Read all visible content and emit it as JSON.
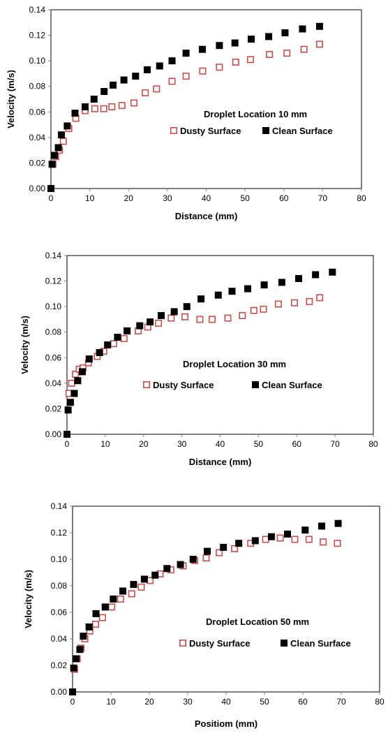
{
  "colors": {
    "dusty": "#c0504d",
    "clean": "#000000",
    "axis": "#808080",
    "frame": "#000000"
  },
  "chart_data": [
    {
      "type": "scatter",
      "xlabel": "Distance (mm)",
      "ylabel": "Velocity (m/s)",
      "annotation": "Droplet Location 10 mm",
      "xlim": [
        0,
        80
      ],
      "ylim": [
        0,
        0.14
      ],
      "xticks": [
        "0",
        "10",
        "20",
        "30",
        "40",
        "50",
        "60",
        "70",
        "80"
      ],
      "yticks": [
        "0.00",
        "0.02",
        "0.04",
        "0.06",
        "0.08",
        "0.10",
        "0.12",
        "0.14"
      ],
      "grid": false,
      "series": [
        {
          "name": "Dusty Surface",
          "marker": "open-square",
          "x": [
            0,
            0.5,
            1.2,
            2.2,
            3.2,
            4.6,
            6.4,
            8.8,
            11.3,
            13.6,
            15.7,
            18.3,
            21.4,
            24.3,
            27.2,
            31.2,
            34.8,
            39.1,
            43.4,
            47.6,
            51.4,
            56.3,
            60.8,
            65.2,
            69.2
          ],
          "y": [
            0,
            0.019,
            0.025,
            0.03,
            0.037,
            0.047,
            0.055,
            0.061,
            0.0625,
            0.0625,
            0.064,
            0.065,
            0.067,
            0.075,
            0.078,
            0.084,
            0.088,
            0.092,
            0.095,
            0.099,
            0.101,
            0.105,
            0.106,
            0.109,
            0.113
          ]
        },
        {
          "name": "Clean Surface",
          "marker": "filled-square",
          "x": [
            0,
            0.3,
            0.9,
            1.9,
            2.7,
            4.2,
            6.2,
            8.8,
            11.1,
            13.7,
            16.0,
            18.8,
            21.8,
            24.8,
            28.0,
            31.2,
            34.8,
            39.0,
            43.4,
            47.4,
            51.6,
            56.1,
            60.3,
            64.8,
            69.2
          ],
          "y": [
            0,
            0.019,
            0.026,
            0.032,
            0.042,
            0.049,
            0.059,
            0.064,
            0.07,
            0.076,
            0.081,
            0.085,
            0.088,
            0.093,
            0.096,
            0.1,
            0.106,
            0.109,
            0.112,
            0.114,
            0.117,
            0.119,
            0.122,
            0.125,
            0.127
          ]
        }
      ]
    },
    {
      "type": "scatter",
      "xlabel": "Distance (mm)",
      "ylabel": "Velocity (m/s)",
      "annotation": "Droplet Location 30 mm",
      "xlim": [
        0,
        80
      ],
      "ylim": [
        0,
        0.14
      ],
      "xticks": [
        "0",
        "10",
        "20",
        "30",
        "40",
        "50",
        "60",
        "70",
        "80"
      ],
      "yticks": [
        "0.00",
        "0.02",
        "0.04",
        "0.06",
        "0.08",
        "0.10",
        "0.12",
        "0.14"
      ],
      "grid": false,
      "series": [
        {
          "name": "Dusty Surface",
          "marker": "open-square",
          "x": [
            0,
            0.5,
            1.2,
            2.2,
            3.2,
            4.2,
            5.6,
            7.9,
            9.6,
            12.2,
            14.9,
            18.6,
            21.1,
            23.9,
            27.2,
            30.8,
            34.7,
            37.9,
            42.0,
            45.8,
            48.8,
            51.3,
            55.2,
            59.4,
            63.3,
            66.0
          ],
          "y": [
            0,
            0.032,
            0.04,
            0.047,
            0.051,
            0.052,
            0.056,
            0.061,
            0.065,
            0.071,
            0.075,
            0.081,
            0.084,
            0.087,
            0.091,
            0.092,
            0.09,
            0.09,
            0.091,
            0.093,
            0.097,
            0.098,
            0.102,
            0.103,
            0.104,
            0.107
          ]
        },
        {
          "name": "Clean Surface",
          "marker": "filled-square",
          "x": [
            0,
            0.3,
            0.9,
            1.9,
            2.8,
            4.0,
            5.8,
            8.5,
            10.6,
            13.2,
            15.7,
            19.0,
            21.7,
            24.6,
            28.0,
            31.3,
            35.0,
            39.5,
            43.1,
            47.2,
            51.5,
            56.1,
            60.5,
            64.9,
            69.3
          ],
          "y": [
            0,
            0.019,
            0.025,
            0.032,
            0.042,
            0.049,
            0.059,
            0.064,
            0.07,
            0.076,
            0.081,
            0.085,
            0.088,
            0.093,
            0.096,
            0.1,
            0.106,
            0.109,
            0.112,
            0.114,
            0.117,
            0.119,
            0.122,
            0.125,
            0.127
          ]
        }
      ]
    },
    {
      "type": "scatter",
      "xlabel": "Positiom (mm)",
      "ylabel": "Velocity (m/s)",
      "annotation": "Droplet Location 50 mm",
      "xlim": [
        0,
        80
      ],
      "ylim": [
        0,
        0.14
      ],
      "xticks": [
        "0",
        "10",
        "20",
        "30",
        "40",
        "50",
        "60",
        "70",
        "80"
      ],
      "yticks": [
        "0.00",
        "0.02",
        "0.04",
        "0.06",
        "0.08",
        "0.10",
        "0.12",
        "0.14"
      ],
      "grid": false,
      "series": [
        {
          "name": "Dusty Surface",
          "marker": "open-square",
          "x": [
            0,
            0.5,
            1.2,
            2.2,
            3.2,
            4.5,
            6.0,
            7.8,
            10.2,
            12.5,
            15.4,
            17.9,
            20.2,
            22.8,
            25.6,
            28.8,
            31.8,
            34.8,
            38.2,
            42.2,
            46.4,
            50.3,
            54.1,
            57.9,
            61.6,
            65.3,
            69.0
          ],
          "y": [
            0,
            0.017,
            0.025,
            0.033,
            0.04,
            0.046,
            0.051,
            0.056,
            0.064,
            0.07,
            0.074,
            0.079,
            0.084,
            0.089,
            0.092,
            0.095,
            0.099,
            0.101,
            0.105,
            0.108,
            0.112,
            0.115,
            0.116,
            0.115,
            0.115,
            0.113,
            0.112
          ]
        },
        {
          "name": "Clean Surface",
          "marker": "filled-square",
          "x": [
            0,
            0.3,
            0.9,
            1.9,
            2.8,
            4.3,
            6.1,
            8.5,
            10.6,
            13.1,
            15.9,
            18.7,
            21.5,
            24.6,
            28.1,
            31.4,
            35.1,
            39.3,
            43.3,
            47.6,
            51.8,
            56.0,
            60.6,
            64.9,
            69.2
          ],
          "y": [
            0,
            0.018,
            0.025,
            0.032,
            0.042,
            0.049,
            0.059,
            0.064,
            0.07,
            0.076,
            0.081,
            0.085,
            0.088,
            0.093,
            0.096,
            0.1,
            0.106,
            0.109,
            0.112,
            0.114,
            0.117,
            0.119,
            0.122,
            0.125,
            0.127
          ]
        }
      ]
    }
  ]
}
